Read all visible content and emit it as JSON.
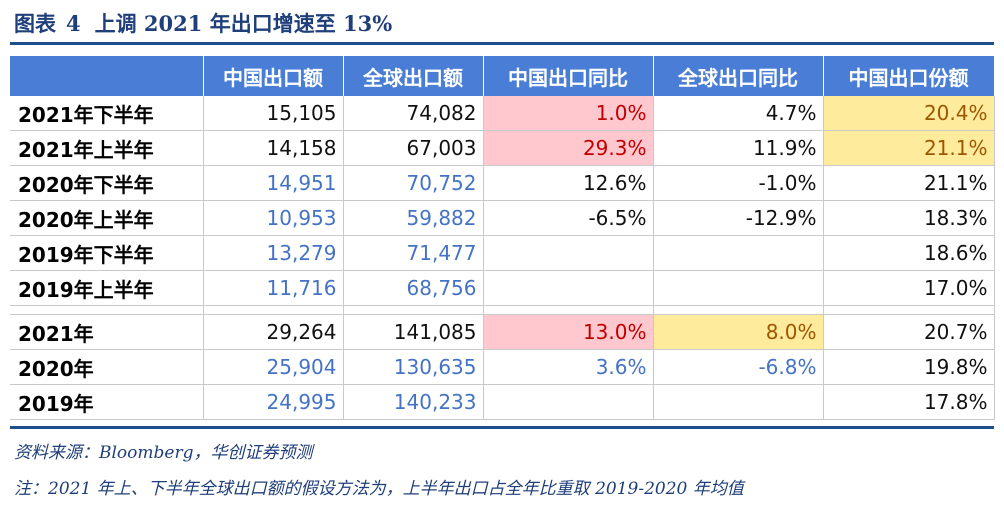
{
  "title": {
    "prefix": "图表",
    "number": "4",
    "text": "上调 2021 年出口增速至 13%"
  },
  "table": {
    "headers": [
      "",
      "中国出口额",
      "全球出口额",
      "中国出口同比",
      "全球出口同比",
      "中国出口份额"
    ],
    "rows": [
      {
        "label": "2021年下半年",
        "china_export": "15,105",
        "global_export": "74,082",
        "china_yoy": "1.0%",
        "global_yoy": "4.7%",
        "china_share": "20.4%"
      },
      {
        "label": "2021年上半年",
        "china_export": "14,158",
        "global_export": "67,003",
        "china_yoy": "29.3%",
        "global_yoy": "11.9%",
        "china_share": "21.1%"
      },
      {
        "label": "2020年下半年",
        "china_export": "14,951",
        "global_export": "70,752",
        "china_yoy": "12.6%",
        "global_yoy": "-1.0%",
        "china_share": "21.1%"
      },
      {
        "label": "2020年上半年",
        "china_export": "10,953",
        "global_export": "59,882",
        "china_yoy": "-6.5%",
        "global_yoy": "-12.9%",
        "china_share": "18.3%"
      },
      {
        "label": "2019年下半年",
        "china_export": "13,279",
        "global_export": "71,477",
        "china_yoy": "",
        "global_yoy": "",
        "china_share": "18.6%"
      },
      {
        "label": "2019年上半年",
        "china_export": "11,716",
        "global_export": "68,756",
        "china_yoy": "",
        "global_yoy": "",
        "china_share": "17.0%"
      }
    ],
    "annual_rows": [
      {
        "label": "2021年",
        "china_export": "29,264",
        "global_export": "141,085",
        "china_yoy": "13.0%",
        "global_yoy": "8.0%",
        "china_share": "20.7%"
      },
      {
        "label": "2020年",
        "china_export": "25,904",
        "global_export": "130,635",
        "china_yoy": "3.6%",
        "global_yoy": "-6.8%",
        "china_share": "19.8%"
      },
      {
        "label": "2019年",
        "china_export": "24,995",
        "global_export": "140,233",
        "china_yoy": "",
        "global_yoy": "",
        "china_share": "17.8%"
      }
    ]
  },
  "colors": {
    "header_bg": "#4a7ed6",
    "highlight_pink": "#ffc7ce",
    "highlight_yellow": "#ffeb9c",
    "forecast_text": "#000000",
    "actual_text": "#4472c4"
  },
  "source": "资料来源：Bloomberg，华创证券预测",
  "footnote": "注：2021 年上、下半年全球出口额的假设方法为，上半年出口占全年比重取 2019-2020 年均值"
}
